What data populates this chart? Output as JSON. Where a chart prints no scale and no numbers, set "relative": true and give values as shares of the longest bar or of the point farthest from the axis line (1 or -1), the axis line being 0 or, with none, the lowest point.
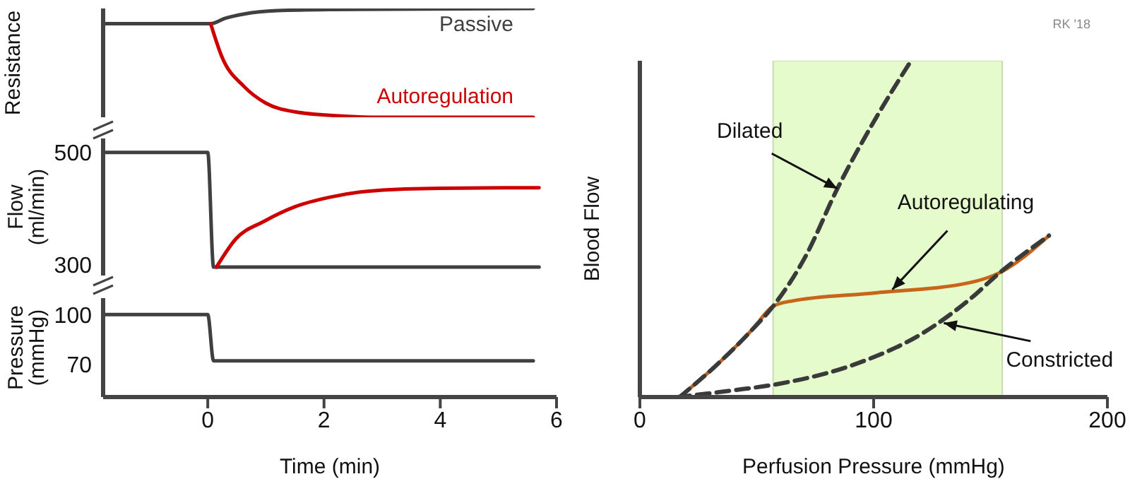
{
  "chart_data": [
    {
      "type": "line",
      "ylabel": "Resistance",
      "relative": true,
      "xlim": [
        -1.8,
        6
      ],
      "tick_labels": false,
      "series": [
        {
          "name": "Passive",
          "color": "#404040",
          "x": [
            -1.8,
            0.05,
            0.3,
            0.63,
            1.2,
            2.1,
            5.6
          ],
          "values": [
            0.86,
            0.86,
            0.91,
            0.95,
            0.98,
            0.99,
            1
          ]
        },
        {
          "name": "Autoregulation",
          "color": "#cc0000",
          "x": [
            0.05,
            0.24,
            0.63,
            1,
            1.5,
            2.2,
            3,
            5.6
          ],
          "values": [
            0.86,
            0.56,
            0.28,
            0.13,
            0.05,
            0.015,
            0,
            0
          ]
        }
      ]
    },
    {
      "type": "line",
      "ylabel": "Flow (ml/min)",
      "xlim": [
        -1.8,
        6
      ],
      "ylim": [
        280,
        525
      ],
      "yticks": [
        300,
        500
      ],
      "tick_labels": "y",
      "series": [
        {
          "color": "#404040",
          "x": [
            -1.8,
            0,
            0.1,
            5.7
          ],
          "values": [
            500,
            500,
            295,
            295
          ]
        },
        {
          "color": "#cc0000",
          "x": [
            0.15,
            0.48,
            0.97,
            1.5,
            2.1,
            2.9,
            4,
            5.7
          ],
          "values": [
            295,
            345,
            377,
            403,
            420,
            432,
            436,
            437
          ]
        }
      ]
    },
    {
      "type": "line",
      "ylabel": "Pressure (mmHg)",
      "xlabel": "Time (min)",
      "xlim": [
        -1.8,
        6
      ],
      "xticks": [
        0,
        2,
        4,
        6
      ],
      "ylim": [
        50,
        110
      ],
      "yticks": [
        70,
        100
      ],
      "series": [
        {
          "color": "#404040",
          "x": [
            -1.8,
            0,
            0.1,
            5.6
          ],
          "values": [
            100,
            100,
            72,
            72
          ]
        }
      ]
    },
    {
      "type": "line",
      "xlabel": "Perfusion Pressure (mmHg)",
      "ylabel": "Blood Flow",
      "relative": true,
      "xlim": [
        0,
        200
      ],
      "xticks": [
        0,
        100,
        200
      ],
      "bands": [
        {
          "axis": "x",
          "from": 57,
          "to": 155,
          "color": "#e6fbcc"
        }
      ],
      "annotations": [
        "RK '18",
        {
          "text": "Dilated",
          "x": 84.5,
          "y": 0.62
        },
        {
          "text": "Autoregulating",
          "x": 108,
          "y": 0.32
        },
        {
          "text": "Constricted",
          "x": 130,
          "y": 0.22
        }
      ],
      "series": [
        {
          "color": "#c8651b",
          "x": [
            17,
            32,
            48,
            57,
            64.5,
            101,
            141,
            154,
            175
          ],
          "values": [
            0,
            0.09,
            0.2,
            0.27,
            0.285,
            0.31,
            0.34,
            0.37,
            0.48
          ]
        },
        {
          "color": "#3a3a3a",
          "line_style": "dashed",
          "x": [
            17,
            32,
            48,
            57,
            71,
            84.5,
            101,
            116
          ],
          "values": [
            0,
            0.09,
            0.2,
            0.27,
            0.42,
            0.62,
            0.83,
            1
          ]
        },
        {
          "color": "#3a3a3a",
          "line_style": "dashed",
          "x": [
            16,
            40,
            60,
            93,
            121,
            141,
            154,
            175
          ],
          "values": [
            0,
            0.02,
            0.04,
            0.1,
            0.19,
            0.29,
            0.37,
            0.48
          ]
        }
      ]
    }
  ]
}
